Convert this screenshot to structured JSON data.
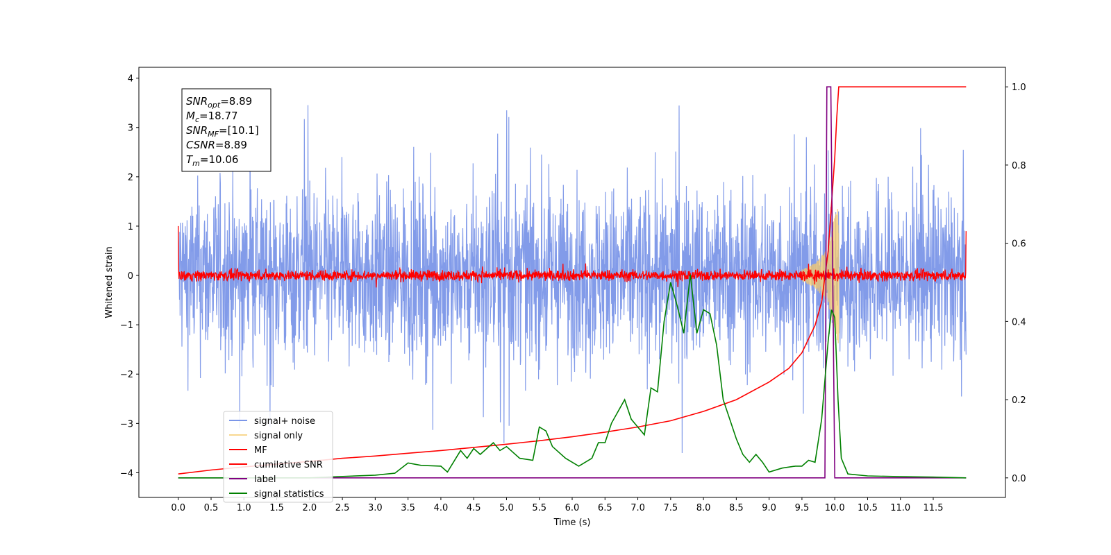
{
  "chart_data": {
    "type": "line",
    "xlabel": "Time (s)",
    "ylabel": "Whitened strain",
    "xlim": [
      -0.6,
      12.6
    ],
    "ylim": [
      -4.5,
      4.22
    ],
    "y2lim": [
      -0.05,
      1.05
    ],
    "grid": false,
    "legend_position": "lower-left",
    "x_ticks": [
      "0.0",
      "0.5",
      "1.0",
      "1.5",
      "2.0",
      "2.5",
      "3.0",
      "3.5",
      "4.0",
      "4.5",
      "5.0",
      "5.5",
      "6.0",
      "6.5",
      "7.0",
      "7.5",
      "8.0",
      "8.5",
      "9.0",
      "9.5",
      "10.0",
      "10.5",
      "11.0",
      "11.5"
    ],
    "y_ticks": [
      "−4",
      "−3",
      "−2",
      "−1",
      "0",
      "1",
      "2",
      "3",
      "4"
    ],
    "y2_ticks": [
      "0.0",
      "0.2",
      "0.4",
      "0.6",
      "0.8",
      "1.0"
    ],
    "info_box": [
      {
        "name": "SNR",
        "sub": "opt",
        "value": "=8.89"
      },
      {
        "name": "M",
        "sub": "c",
        "value": "=18.77"
      },
      {
        "name": "SNR",
        "sub": "MF",
        "value": "=[10.1]"
      },
      {
        "name": "CSNR",
        "sub": "",
        "value": "=8.89"
      },
      {
        "name": "T",
        "sub": "m",
        "value": "=10.06"
      }
    ],
    "series": [
      {
        "name": "signal+ noise",
        "axis": "left",
        "color": "#7b96e8",
        "kind": "noise",
        "x_range": [
          0.0,
          12.0
        ],
        "typical_amplitude": [
          -2.0,
          2.2
        ],
        "peak": 3.85
      },
      {
        "name": "signal only",
        "axis": "left",
        "color": "#f5c96a",
        "kind": "chirp",
        "x_range": [
          9.5,
          10.06
        ],
        "envelope": [
          [
            9.5,
            0.12
          ],
          [
            9.7,
            0.25
          ],
          [
            9.9,
            0.55
          ],
          [
            10.0,
            1.2
          ],
          [
            10.06,
            1.4
          ]
        ]
      },
      {
        "name": "MF",
        "axis": "left",
        "color": "#ff0000",
        "kind": "noise",
        "x_range": [
          0.0,
          12.0
        ],
        "typical_amplitude": [
          -0.15,
          0.15
        ],
        "edge_values": [
          1.0,
          0.9
        ]
      },
      {
        "name": "cumilative SNR",
        "axis": "right",
        "color": "#ff0000",
        "points": [
          [
            0.0,
            0.01
          ],
          [
            0.5,
            0.02
          ],
          [
            1.0,
            0.028
          ],
          [
            1.5,
            0.035
          ],
          [
            2.0,
            0.042
          ],
          [
            2.5,
            0.05
          ],
          [
            3.0,
            0.056
          ],
          [
            3.5,
            0.063
          ],
          [
            4.0,
            0.07
          ],
          [
            4.5,
            0.078
          ],
          [
            5.0,
            0.086
          ],
          [
            5.5,
            0.095
          ],
          [
            6.0,
            0.105
          ],
          [
            6.5,
            0.117
          ],
          [
            7.0,
            0.13
          ],
          [
            7.5,
            0.146
          ],
          [
            8.0,
            0.17
          ],
          [
            8.5,
            0.2
          ],
          [
            9.0,
            0.245
          ],
          [
            9.3,
            0.28
          ],
          [
            9.5,
            0.32
          ],
          [
            9.7,
            0.39
          ],
          [
            9.8,
            0.45
          ],
          [
            9.9,
            0.58
          ],
          [
            9.95,
            0.7
          ],
          [
            10.0,
            0.82
          ],
          [
            10.03,
            0.92
          ],
          [
            10.06,
            1.0
          ],
          [
            12.0,
            1.0
          ]
        ]
      },
      {
        "name": "label",
        "axis": "right",
        "color": "#800080",
        "points": [
          [
            0.0,
            0.0
          ],
          [
            9.85,
            0.0
          ],
          [
            9.88,
            1.0
          ],
          [
            9.94,
            1.0
          ],
          [
            10.0,
            0.0
          ],
          [
            12.0,
            0.0
          ]
        ]
      },
      {
        "name": "signal statistics",
        "axis": "right",
        "color": "#008000",
        "points": [
          [
            0.0,
            0.0
          ],
          [
            1.0,
            0.0
          ],
          [
            2.0,
            0.0
          ],
          [
            3.0,
            0.007
          ],
          [
            3.3,
            0.012
          ],
          [
            3.5,
            0.038
          ],
          [
            3.7,
            0.032
          ],
          [
            4.0,
            0.03
          ],
          [
            4.1,
            0.015
          ],
          [
            4.3,
            0.07
          ],
          [
            4.4,
            0.05
          ],
          [
            4.5,
            0.075
          ],
          [
            4.6,
            0.06
          ],
          [
            4.8,
            0.09
          ],
          [
            4.9,
            0.07
          ],
          [
            5.0,
            0.08
          ],
          [
            5.2,
            0.05
          ],
          [
            5.4,
            0.045
          ],
          [
            5.5,
            0.13
          ],
          [
            5.6,
            0.12
          ],
          [
            5.7,
            0.08
          ],
          [
            5.9,
            0.05
          ],
          [
            6.1,
            0.03
          ],
          [
            6.3,
            0.05
          ],
          [
            6.4,
            0.09
          ],
          [
            6.5,
            0.09
          ],
          [
            6.6,
            0.14
          ],
          [
            6.8,
            0.2
          ],
          [
            6.9,
            0.15
          ],
          [
            7.0,
            0.13
          ],
          [
            7.1,
            0.11
          ],
          [
            7.2,
            0.23
          ],
          [
            7.3,
            0.22
          ],
          [
            7.4,
            0.4
          ],
          [
            7.5,
            0.5
          ],
          [
            7.6,
            0.44
          ],
          [
            7.7,
            0.37
          ],
          [
            7.8,
            0.52
          ],
          [
            7.9,
            0.37
          ],
          [
            8.0,
            0.43
          ],
          [
            8.1,
            0.42
          ],
          [
            8.2,
            0.34
          ],
          [
            8.3,
            0.2
          ],
          [
            8.5,
            0.1
          ],
          [
            8.6,
            0.06
          ],
          [
            8.7,
            0.04
          ],
          [
            8.8,
            0.06
          ],
          [
            8.9,
            0.04
          ],
          [
            9.0,
            0.015
          ],
          [
            9.2,
            0.025
          ],
          [
            9.4,
            0.03
          ],
          [
            9.5,
            0.03
          ],
          [
            9.6,
            0.045
          ],
          [
            9.7,
            0.04
          ],
          [
            9.8,
            0.15
          ],
          [
            9.9,
            0.35
          ],
          [
            9.95,
            0.43
          ],
          [
            10.0,
            0.41
          ],
          [
            10.05,
            0.2
          ],
          [
            10.1,
            0.05
          ],
          [
            10.2,
            0.01
          ],
          [
            10.5,
            0.005
          ],
          [
            11.0,
            0.003
          ],
          [
            11.5,
            0.002
          ],
          [
            12.0,
            0.0
          ]
        ]
      }
    ]
  }
}
